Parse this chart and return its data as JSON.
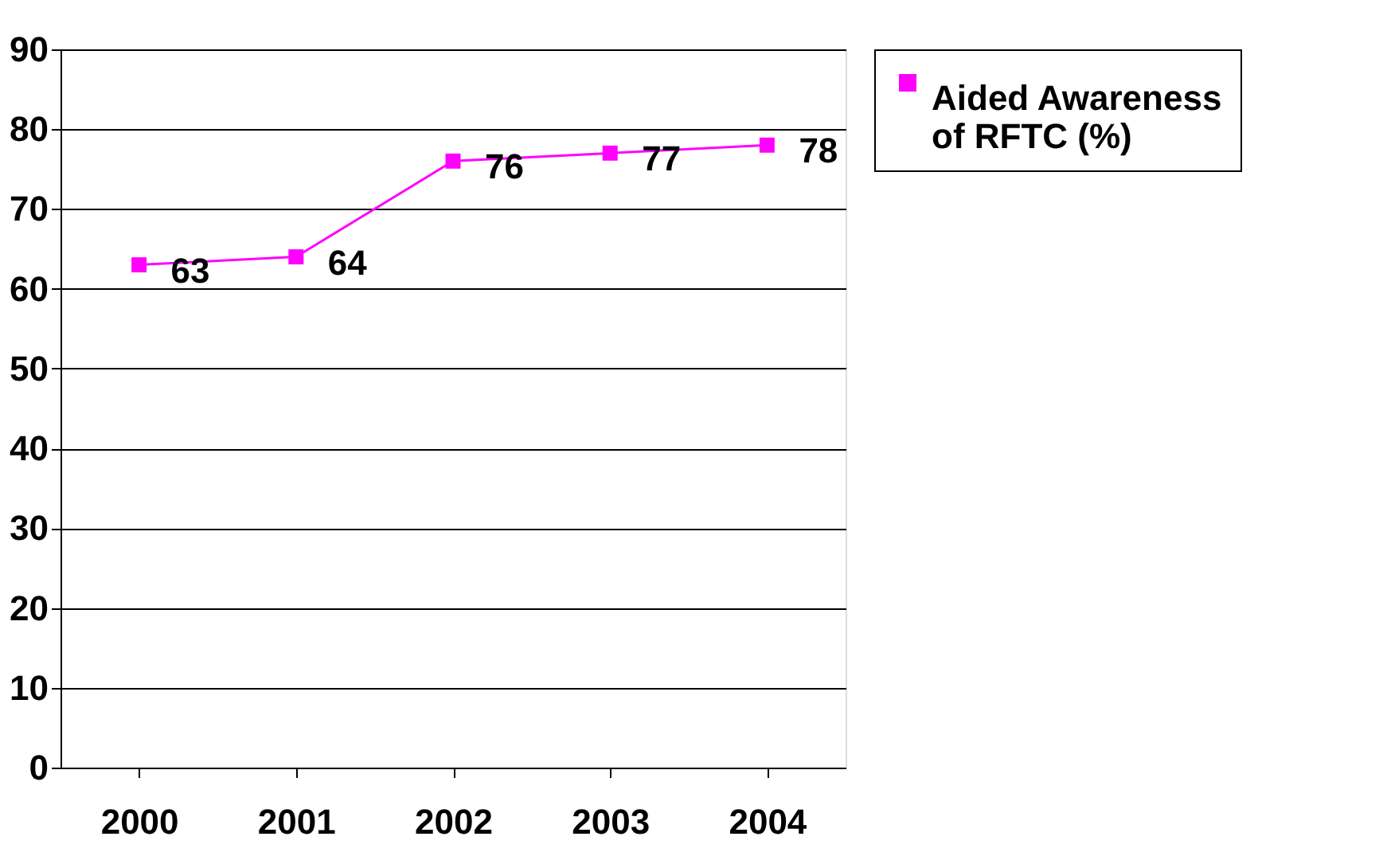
{
  "chart_data": {
    "type": "line",
    "categories": [
      "2000",
      "2001",
      "2002",
      "2003",
      "2004"
    ],
    "series": [
      {
        "name": "Aided Awareness of RFTC (%)",
        "color": "#ff00ff",
        "values": [
          63,
          64,
          76,
          77,
          78
        ]
      }
    ],
    "ylim": [
      0,
      90
    ],
    "yticks": [
      0,
      10,
      20,
      30,
      40,
      50,
      60,
      70,
      80,
      90
    ],
    "grid": "y",
    "legend": "right",
    "marker": "square",
    "line_style": "solid",
    "data_labels": true
  }
}
